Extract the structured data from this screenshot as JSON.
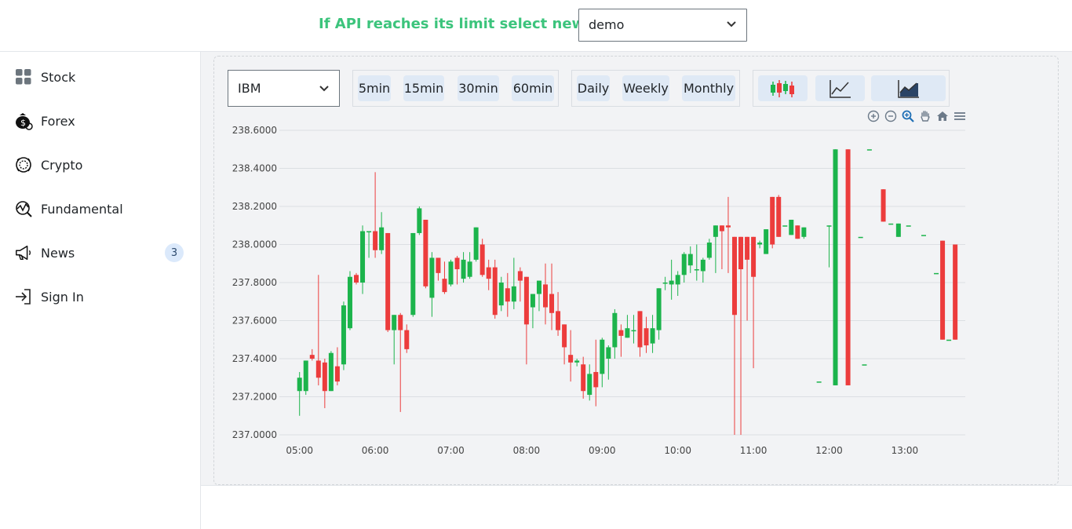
{
  "header": {
    "api_message": "If API reaches its limit select new One",
    "api_key_selected": "demo"
  },
  "sidebar": {
    "items": [
      {
        "label": "Stock",
        "icon": "grid-icon"
      },
      {
        "label": "Forex",
        "icon": "money-bag-icon"
      },
      {
        "label": "Crypto",
        "icon": "crypto-coin-icon"
      },
      {
        "label": "Fundamental",
        "icon": "analytics-icon"
      },
      {
        "label": "News",
        "icon": "megaphone-icon",
        "badge": "3"
      },
      {
        "label": "Sign In",
        "icon": "sign-in-icon"
      }
    ]
  },
  "toolbar": {
    "symbol": "IBM",
    "intraday": [
      "5min",
      "15min",
      "30min",
      "60min"
    ],
    "periods": [
      "Daily",
      "Weekly",
      "Monthly"
    ],
    "chart_types": [
      "candlestick-chart-icon",
      "line-chart-icon",
      "area-chart-icon"
    ]
  },
  "modebar": [
    "zoom-in-icon",
    "zoom-out-icon",
    "autoscale-icon",
    "pan-icon",
    "reset-home-icon",
    "menu-icon"
  ],
  "colors": {
    "up": "#1cb44c",
    "down": "#ec3c3c",
    "accent": "#3cc47c"
  },
  "chart_data": {
    "type": "candlestick",
    "ylim": [
      237.0,
      238.6
    ],
    "y_ticks": [
      "238.6000",
      "238.4000",
      "238.2000",
      "238.0000",
      "237.8000",
      "237.6000",
      "237.4000",
      "237.2000",
      "237.0000"
    ],
    "x_ticks": [
      "05:00",
      "06:00",
      "07:00",
      "08:00",
      "09:00",
      "10:00",
      "11:00",
      "12:00",
      "13:00"
    ],
    "x_tick_minutes": [
      300,
      360,
      420,
      480,
      540,
      600,
      660,
      720,
      780
    ],
    "grid": true,
    "candles": [
      [
        300,
        237.23,
        237.3,
        237.1,
        237.33
      ],
      [
        305,
        237.23,
        237.39,
        237.21,
        237.39
      ],
      [
        310,
        237.42,
        237.4,
        237.39,
        237.45
      ],
      [
        315,
        237.39,
        237.3,
        237.26,
        237.84
      ],
      [
        320,
        237.38,
        237.23,
        237.14,
        237.4
      ],
      [
        325,
        237.23,
        237.43,
        237.23,
        237.44
      ],
      [
        330,
        237.36,
        237.28,
        237.26,
        237.46
      ],
      [
        335,
        237.37,
        237.68,
        237.34,
        237.7
      ],
      [
        340,
        237.56,
        237.83,
        237.55,
        237.86
      ],
      [
        345,
        237.84,
        237.8,
        237.79,
        237.85
      ],
      [
        350,
        237.8,
        238.07,
        237.74,
        238.1
      ],
      [
        355,
        238.07,
        238.07,
        237.93,
        238.07
      ],
      [
        360,
        238.07,
        237.97,
        237.93,
        238.38
      ],
      [
        365,
        237.97,
        238.09,
        237.95,
        238.17
      ],
      [
        370,
        238.06,
        237.55,
        237.54,
        238.06
      ],
      [
        375,
        237.55,
        237.63,
        237.37,
        237.63
      ],
      [
        380,
        237.63,
        237.55,
        237.12,
        237.64
      ],
      [
        385,
        237.55,
        237.45,
        237.43,
        237.58
      ],
      [
        390,
        237.63,
        238.06,
        237.62,
        238.06
      ],
      [
        395,
        238.06,
        238.19,
        238.05,
        238.2
      ],
      [
        400,
        238.13,
        237.78,
        237.77,
        238.13
      ],
      [
        405,
        237.72,
        237.93,
        237.62,
        237.96
      ],
      [
        410,
        237.93,
        237.85,
        237.81,
        237.93
      ],
      [
        415,
        237.82,
        237.75,
        237.74,
        237.91
      ],
      [
        420,
        237.79,
        237.91,
        237.78,
        237.92
      ],
      [
        425,
        237.93,
        237.87,
        237.79,
        237.94
      ],
      [
        430,
        237.82,
        237.92,
        237.8,
        237.96
      ],
      [
        435,
        237.83,
        237.91,
        237.82,
        237.96
      ],
      [
        440,
        237.92,
        238.09,
        237.91,
        238.09
      ],
      [
        445,
        238.0,
        237.84,
        237.83,
        238.03
      ],
      [
        450,
        237.88,
        237.82,
        237.76,
        237.92
      ],
      [
        455,
        237.88,
        237.63,
        237.61,
        237.92
      ],
      [
        460,
        237.68,
        237.8,
        237.65,
        237.83
      ],
      [
        465,
        237.77,
        237.7,
        237.62,
        237.85
      ],
      [
        470,
        237.7,
        237.78,
        237.66,
        237.93
      ],
      [
        475,
        237.86,
        237.81,
        237.7,
        237.88
      ],
      [
        480,
        237.83,
        237.58,
        237.37,
        237.83
      ],
      [
        485,
        237.67,
        237.74,
        237.56,
        237.74
      ],
      [
        490,
        237.74,
        237.81,
        237.65,
        237.81
      ],
      [
        495,
        237.79,
        237.67,
        237.58,
        237.9
      ],
      [
        500,
        237.74,
        237.64,
        237.55,
        237.9
      ],
      [
        505,
        237.65,
        237.55,
        237.52,
        237.75
      ],
      [
        510,
        237.58,
        237.46,
        237.37,
        237.58
      ],
      [
        515,
        237.42,
        237.38,
        237.28,
        237.55
      ],
      [
        520,
        237.38,
        237.39,
        237.36,
        237.4
      ],
      [
        525,
        237.37,
        237.23,
        237.19,
        237.41
      ],
      [
        530,
        237.21,
        237.32,
        237.18,
        237.37
      ],
      [
        535,
        237.33,
        237.25,
        237.15,
        237.5
      ],
      [
        540,
        237.32,
        237.5,
        237.25,
        237.51
      ],
      [
        545,
        237.4,
        237.46,
        237.29,
        237.47
      ],
      [
        550,
        237.46,
        237.64,
        237.4,
        237.66
      ],
      [
        555,
        237.55,
        237.52,
        237.41,
        237.58
      ],
      [
        560,
        237.51,
        237.56,
        237.51,
        237.63
      ],
      [
        565,
        237.55,
        237.55,
        237.48,
        237.63
      ],
      [
        570,
        237.65,
        237.46,
        237.41,
        237.65
      ],
      [
        575,
        237.56,
        237.47,
        237.43,
        237.62
      ],
      [
        580,
        237.48,
        237.56,
        237.43,
        237.63
      ],
      [
        585,
        237.55,
        237.77,
        237.5,
        237.77
      ],
      [
        590,
        237.8,
        237.8,
        237.76,
        237.83
      ],
      [
        595,
        237.79,
        237.81,
        237.71,
        237.92
      ],
      [
        600,
        237.79,
        237.84,
        237.73,
        237.86
      ],
      [
        605,
        237.84,
        237.95,
        237.8,
        237.96
      ],
      [
        610,
        237.89,
        237.95,
        237.85,
        237.99
      ],
      [
        615,
        237.87,
        237.87,
        237.81,
        238.0
      ],
      [
        620,
        237.86,
        237.92,
        237.8,
        237.93
      ],
      [
        625,
        237.93,
        238.01,
        237.92,
        238.03
      ],
      [
        630,
        238.04,
        238.1,
        237.85,
        238.1
      ],
      [
        635,
        238.1,
        238.07,
        237.87,
        238.1
      ],
      [
        640,
        238.1,
        238.09,
        237.85,
        238.25
      ],
      [
        645,
        238.04,
        237.63,
        237.0,
        238.04
      ],
      [
        650,
        238.04,
        237.87,
        237.0,
        238.04
      ],
      [
        655,
        238.04,
        237.92,
        237.6,
        238.04
      ],
      [
        660,
        238.04,
        237.83,
        237.35,
        238.04
      ],
      [
        665,
        238.0,
        238.01,
        237.98,
        238.02
      ],
      [
        670,
        237.95,
        238.08,
        237.95,
        238.08
      ],
      [
        675,
        238.25,
        238.0,
        237.98,
        238.25
      ],
      [
        680,
        238.25,
        238.04,
        238.04,
        238.26
      ],
      [
        685,
        238.1,
        238.1,
        238.1,
        238.1
      ],
      [
        690,
        238.05,
        238.13,
        238.05,
        238.13
      ],
      [
        695,
        238.1,
        238.03,
        238.03,
        238.1
      ],
      [
        700,
        238.04,
        238.09,
        238.03,
        238.09
      ]
    ],
    "late_candles": [
      [
        712,
        237.28,
        237.28,
        237.28,
        237.28
      ],
      [
        720,
        238.1,
        238.1,
        237.88,
        238.1
      ],
      [
        725,
        237.26,
        238.5,
        237.26,
        238.5
      ],
      [
        735,
        238.5,
        237.26,
        237.26,
        238.5
      ],
      [
        745,
        238.04,
        238.04,
        238.04,
        238.04
      ],
      [
        748,
        237.37,
        237.37,
        237.37,
        237.37
      ],
      [
        752,
        238.5,
        238.5,
        238.5,
        238.5
      ],
      [
        763,
        238.29,
        238.12,
        238.12,
        238.29
      ],
      [
        769,
        238.11,
        238.11,
        238.11,
        238.11
      ],
      [
        775,
        238.04,
        238.11,
        238.04,
        238.11
      ],
      [
        783,
        238.1,
        238.1,
        238.1,
        238.1
      ],
      [
        795,
        238.05,
        238.05,
        238.05,
        238.05
      ],
      [
        805,
        237.85,
        237.85,
        237.85,
        237.85
      ],
      [
        810,
        238.02,
        237.5,
        237.5,
        238.02
      ],
      [
        815,
        237.5,
        237.5,
        237.5,
        237.5
      ],
      [
        820,
        238.0,
        237.5,
        237.5,
        238.0
      ]
    ]
  }
}
